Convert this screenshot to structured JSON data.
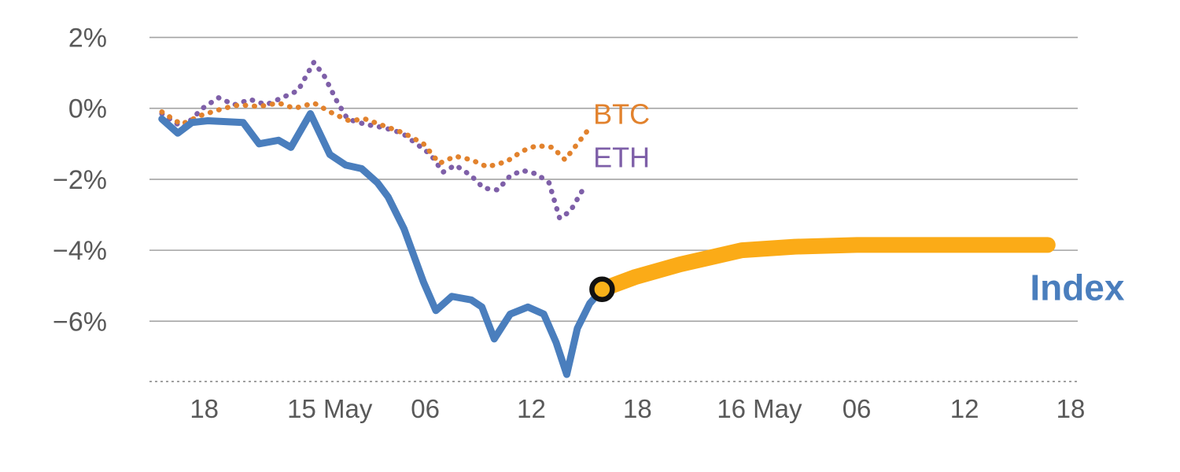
{
  "chart": {
    "background": "#ffffff",
    "colors": {
      "index": "#4a7ebd",
      "btc": "#e2822d",
      "eth": "#7e5fa8",
      "projection": "#fbab17",
      "grid": "#a3a3a3",
      "baseline": "#8c8c8c",
      "axis_text": "#595959",
      "marker_stroke": "#111111",
      "marker_fill": "#f9b21a"
    }
  },
  "chart_data": {
    "type": "line",
    "title": "",
    "xlabel": "",
    "ylabel": "",
    "x_domain": [
      0,
      52.5
    ],
    "ylim": [
      -7.9,
      2.3
    ],
    "grid": true,
    "legend_position": "inline-labels",
    "y_ticks": [
      {
        "value": 2,
        "label": "2%"
      },
      {
        "value": 0,
        "label": "0%"
      },
      {
        "value": -2,
        "label": "−2%"
      },
      {
        "value": -4,
        "label": "−4%"
      },
      {
        "value": -6,
        "label": "−6%"
      }
    ],
    "baseline_value": -7.7,
    "x_ticks": [
      {
        "value": 3.1,
        "label": "18"
      },
      {
        "value": 10.2,
        "label": "15 May"
      },
      {
        "value": 15.6,
        "label": "06"
      },
      {
        "value": 21.6,
        "label": "12"
      },
      {
        "value": 27.6,
        "label": "18"
      },
      {
        "value": 34.5,
        "label": "16 May"
      },
      {
        "value": 40.0,
        "label": "06"
      },
      {
        "value": 46.1,
        "label": "12"
      },
      {
        "value": 52.1,
        "label": "18"
      }
    ],
    "series": [
      {
        "name": "ETH",
        "color_key": "eth",
        "style": "dotted",
        "width": 6.5,
        "points": [
          [
            0.7,
            -0.15
          ],
          [
            1.9,
            -0.55
          ],
          [
            3.0,
            0.0
          ],
          [
            3.9,
            0.3
          ],
          [
            4.8,
            0.1
          ],
          [
            5.7,
            0.25
          ],
          [
            6.6,
            0.1
          ],
          [
            7.5,
            0.3
          ],
          [
            8.4,
            0.5
          ],
          [
            9.3,
            1.3
          ],
          [
            9.9,
            0.9
          ],
          [
            10.6,
            0.2
          ],
          [
            11.2,
            -0.3
          ],
          [
            12.2,
            -0.45
          ],
          [
            13.3,
            -0.55
          ],
          [
            14.3,
            -0.7
          ],
          [
            15.1,
            -1.0
          ],
          [
            15.9,
            -1.3
          ],
          [
            16.6,
            -1.8
          ],
          [
            17.3,
            -1.6
          ],
          [
            18.2,
            -1.9
          ],
          [
            18.9,
            -2.25
          ],
          [
            19.7,
            -2.3
          ],
          [
            20.4,
            -1.9
          ],
          [
            21.1,
            -1.75
          ],
          [
            21.9,
            -1.85
          ],
          [
            22.6,
            -2.1
          ],
          [
            23.2,
            -3.1
          ],
          [
            23.8,
            -2.9
          ],
          [
            24.5,
            -2.3
          ]
        ],
        "label": {
          "text": "ETH",
          "x": 25.1,
          "y": -1.38,
          "size": 36,
          "bold": false,
          "anchor": "start"
        }
      },
      {
        "name": "BTC",
        "color_key": "btc",
        "style": "dotted",
        "width": 6.5,
        "points": [
          [
            0.7,
            -0.1
          ],
          [
            1.8,
            -0.45
          ],
          [
            2.9,
            -0.2
          ],
          [
            4.2,
            0.0
          ],
          [
            5.1,
            0.1
          ],
          [
            6.2,
            0.05
          ],
          [
            7.3,
            0.15
          ],
          [
            8.2,
            0.0
          ],
          [
            9.3,
            0.15
          ],
          [
            10.4,
            -0.15
          ],
          [
            11.3,
            -0.35
          ],
          [
            12.2,
            -0.3
          ],
          [
            13.3,
            -0.5
          ],
          [
            14.4,
            -0.7
          ],
          [
            15.5,
            -1.0
          ],
          [
            16.4,
            -1.55
          ],
          [
            17.3,
            -1.35
          ],
          [
            18.2,
            -1.45
          ],
          [
            19.1,
            -1.65
          ],
          [
            20.2,
            -1.5
          ],
          [
            21.1,
            -1.2
          ],
          [
            21.9,
            -1.05
          ],
          [
            22.8,
            -1.1
          ],
          [
            23.5,
            -1.45
          ],
          [
            24.2,
            -1.0
          ],
          [
            24.9,
            -0.55
          ]
        ],
        "label": {
          "text": "BTC",
          "x": 25.1,
          "y": -0.16,
          "size": 36,
          "bold": false,
          "anchor": "start"
        }
      },
      {
        "name": "Index",
        "color_key": "index",
        "style": "solid",
        "width": 9,
        "points": [
          [
            0.7,
            -0.3
          ],
          [
            1.6,
            -0.7
          ],
          [
            2.4,
            -0.4
          ],
          [
            3.3,
            -0.35
          ],
          [
            5.3,
            -0.4
          ],
          [
            6.2,
            -1.0
          ],
          [
            7.3,
            -0.9
          ],
          [
            8.0,
            -1.1
          ],
          [
            9.1,
            -0.15
          ],
          [
            10.2,
            -1.3
          ],
          [
            11.1,
            -1.6
          ],
          [
            12.0,
            -1.7
          ],
          [
            12.9,
            -2.1
          ],
          [
            13.5,
            -2.5
          ],
          [
            14.4,
            -3.4
          ],
          [
            15.5,
            -4.9
          ],
          [
            16.2,
            -5.7
          ],
          [
            17.1,
            -5.3
          ],
          [
            18.2,
            -5.4
          ],
          [
            18.8,
            -5.6
          ],
          [
            19.5,
            -6.5
          ],
          [
            20.4,
            -5.8
          ],
          [
            21.4,
            -5.6
          ],
          [
            22.3,
            -5.8
          ],
          [
            23.0,
            -6.6
          ],
          [
            23.6,
            -7.5
          ],
          [
            24.2,
            -6.2
          ],
          [
            24.9,
            -5.5
          ],
          [
            25.6,
            -5.1
          ]
        ],
        "label": {
          "text": "Index",
          "x": 49.8,
          "y": -5.05,
          "size": 46,
          "bold": true,
          "anchor": "start"
        }
      },
      {
        "name": "Index forecast",
        "color_key": "projection",
        "style": "solid",
        "width": 20,
        "points": [
          [
            25.6,
            -5.1
          ],
          [
            27.5,
            -4.75
          ],
          [
            30.0,
            -4.4
          ],
          [
            33.5,
            -4.0
          ],
          [
            36.5,
            -3.9
          ],
          [
            40.0,
            -3.85
          ],
          [
            45.0,
            -3.85
          ],
          [
            50.8,
            -3.85
          ]
        ],
        "label": null
      }
    ],
    "marker": {
      "x": 25.6,
      "y": -5.1,
      "radius": 13,
      "stroke_width": 6.5
    }
  }
}
